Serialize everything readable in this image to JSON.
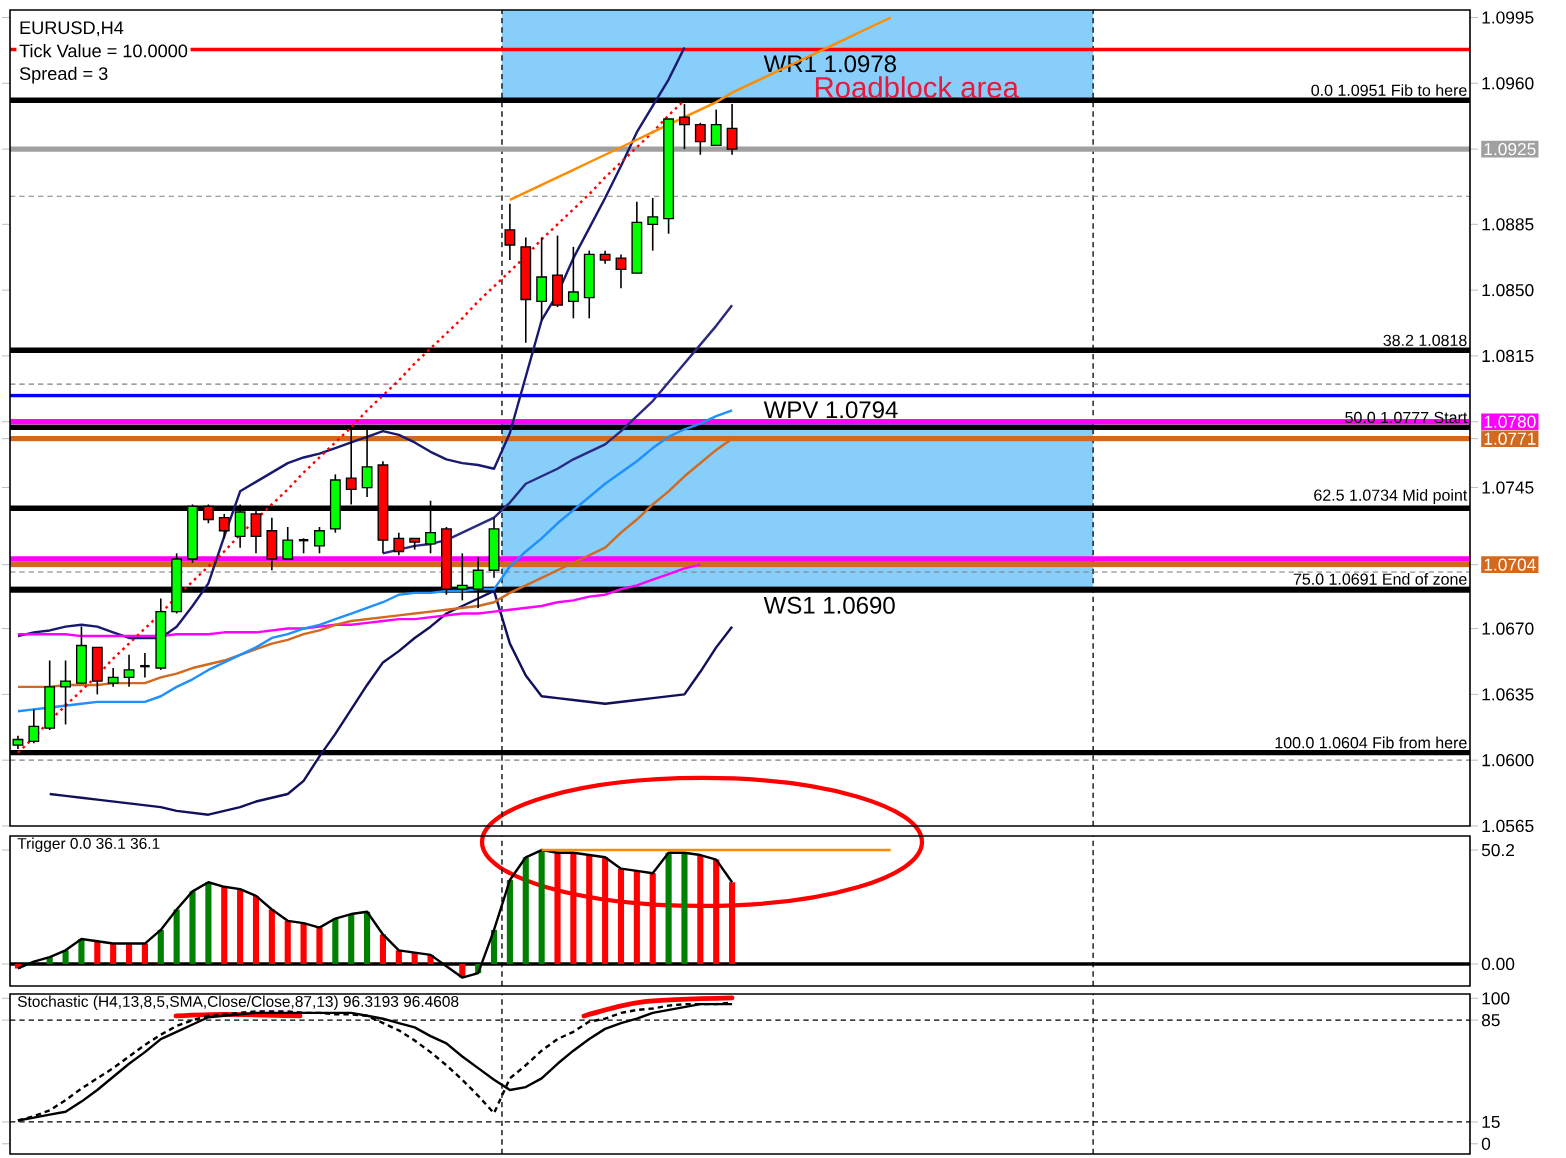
{
  "chart_data": [
    {
      "type": "candlestick",
      "title": "EURUSD,H4",
      "tick_labels": "y",
      "annotations": [
        "Tick Value = 10.0000",
        "Spread = 3",
        {
          "text": "Roadblock area",
          "y": 1.0952
        }
      ],
      "categories": [
        null,
        null,
        null,
        null,
        null,
        null,
        null,
        null,
        null,
        null,
        null,
        null,
        null,
        null,
        null,
        null,
        null,
        null,
        null,
        null,
        null,
        null,
        null,
        null,
        null,
        null,
        null,
        null,
        null,
        null,
        null,
        null,
        null,
        null,
        null,
        null,
        null,
        null,
        null,
        null,
        null,
        null,
        null,
        null,
        null,
        null,
        null,
        null,
        null,
        null,
        null,
        null,
        null,
        null,
        null,
        null,
        null,
        null,
        null,
        null,
        null,
        null,
        null,
        null,
        null,
        null,
        null,
        null,
        null,
        null,
        null,
        null,
        null,
        null,
        null,
        null,
        null,
        null,
        null,
        null,
        null,
        null,
        null,
        null,
        null,
        null,
        null,
        null,
        null,
        null,
        null,
        null
      ],
      "ohlc": [
        [
          1.0608,
          1.0613,
          1.0606,
          1.0611
        ],
        [
          1.061,
          1.0627,
          1.0609,
          1.0618
        ],
        [
          1.0617,
          1.0653,
          1.0616,
          1.0639
        ],
        [
          1.0639,
          1.0653,
          1.0619,
          1.0642
        ],
        [
          1.0641,
          1.0671,
          1.0641,
          1.0661
        ],
        [
          1.066,
          1.066,
          1.0635,
          1.0642
        ],
        [
          1.0641,
          1.0649,
          1.0639,
          1.0644
        ],
        [
          1.0644,
          1.0656,
          1.0639,
          1.0648
        ],
        [
          1.065,
          1.0657,
          1.0644,
          1.065
        ],
        [
          1.0649,
          1.0686,
          1.0648,
          1.0679
        ],
        [
          1.0679,
          1.071,
          1.0678,
          1.0707
        ],
        [
          1.0707,
          1.0736,
          1.0705,
          1.0735
        ],
        [
          1.0735,
          1.0736,
          1.0726,
          1.0728
        ],
        [
          1.0729,
          1.0731,
          1.0718,
          1.0722
        ],
        [
          1.0719,
          1.0736,
          1.0713,
          1.0732
        ],
        [
          1.0731,
          1.0733,
          1.071,
          1.0719
        ],
        [
          1.0722,
          1.0729,
          1.0701,
          1.0707
        ],
        [
          1.0707,
          1.0724,
          1.0707,
          1.0717
        ],
        [
          1.0717,
          1.0718,
          1.071,
          1.0717
        ],
        [
          1.0714,
          1.0724,
          1.071,
          1.0722
        ],
        [
          1.0723,
          1.0752,
          1.0721,
          1.0749
        ],
        [
          1.075,
          1.0776,
          1.0736,
          1.0744
        ],
        [
          1.0745,
          1.0776,
          1.074,
          1.0756
        ],
        [
          1.0757,
          1.0759,
          1.071,
          1.0717
        ],
        [
          1.0718,
          1.0721,
          1.0709,
          1.0711
        ],
        [
          1.0718,
          1.0718,
          1.0712,
          1.0716
        ],
        [
          1.0715,
          1.0738,
          1.071,
          1.0721
        ],
        [
          1.0723,
          1.0724,
          1.0688,
          1.0691
        ],
        [
          1.0691,
          1.071,
          1.0685,
          1.0693
        ],
        [
          1.0691,
          1.0708,
          1.0681,
          1.0701
        ],
        [
          1.0701,
          1.0729,
          1.0697,
          1.0723
        ],
        [
          1.0882,
          1.0896,
          1.0866,
          1.0874
        ],
        [
          1.0873,
          1.0878,
          1.0822,
          1.0845
        ],
        [
          1.0844,
          1.0878,
          1.0834,
          1.0857
        ],
        [
          1.0858,
          1.0879,
          1.0841,
          1.0842
        ],
        [
          1.0844,
          1.0873,
          1.0835,
          1.0849
        ],
        [
          1.0846,
          1.0871,
          1.0835,
          1.0869
        ],
        [
          1.0869,
          1.0871,
          1.0864,
          1.0866
        ],
        [
          1.0867,
          1.0869,
          1.0851,
          1.0861
        ],
        [
          1.0859,
          1.0897,
          1.0859,
          1.0886
        ],
        [
          1.0885,
          1.0899,
          1.0871,
          1.0889
        ],
        [
          1.0888,
          1.0941,
          1.088,
          1.0941
        ],
        [
          1.0942,
          1.0949,
          1.0925,
          1.0938
        ],
        [
          1.0938,
          1.0939,
          1.0922,
          1.0929
        ],
        [
          1.0927,
          1.0946,
          1.0927,
          1.0938
        ],
        [
          1.0936,
          1.0949,
          1.0922,
          1.0925
        ],
        null,
        null,
        null,
        null,
        null,
        null,
        null,
        null,
        null,
        null,
        null,
        null,
        null,
        null,
        null,
        null,
        null,
        null,
        null,
        null,
        null,
        null,
        null,
        null,
        null,
        null,
        null,
        null,
        null,
        null,
        null,
        null,
        null,
        null,
        null,
        null,
        null,
        null,
        null,
        null,
        null,
        null,
        null,
        null,
        null,
        null
      ],
      "series": [
        {
          "type": "line",
          "color": "#191970",
          "values": [
            1.0666,
            1.0668,
            1.0669,
            1.0671,
            1.0672,
            1.0671,
            1.0668,
            1.0665,
            1.0665,
            1.0665,
            1.0671,
            1.0682,
            1.0694,
            1.0719,
            1.0743,
            1.0748,
            1.0753,
            1.0758,
            1.0761,
            1.0763,
            1.0766,
            1.0769,
            1.0772,
            1.0775,
            1.0773,
            1.0769,
            1.0764,
            1.076,
            1.0758,
            1.0757,
            1.0755,
            1.0774,
            1.0804,
            1.0834,
            1.0848,
            1.0867,
            1.0883,
            1.0899,
            1.0916,
            1.0934,
            1.0948,
            1.0962,
            1.0979,
            null,
            null,
            null,
            null,
            null,
            null,
            null,
            null,
            null,
            null,
            null,
            null,
            null,
            null,
            null,
            null,
            null,
            null,
            null,
            null,
            null,
            null,
            null,
            null,
            null,
            null,
            null,
            null,
            null,
            null,
            null,
            null,
            null,
            null,
            null,
            null,
            null,
            null,
            null,
            null,
            null,
            null,
            null,
            null,
            null,
            null,
            null,
            null,
            null
          ]
        },
        {
          "type": "line",
          "color": "#2a2a80",
          "values": [
            null,
            null,
            null,
            null,
            null,
            null,
            null,
            null,
            null,
            null,
            null,
            null,
            null,
            null,
            null,
            null,
            null,
            null,
            null,
            null,
            null,
            null,
            null,
            1.071,
            1.0712,
            1.0714,
            1.0715,
            1.0717,
            1.0721,
            1.0725,
            1.0729,
            1.0737,
            1.0747,
            1.0751,
            1.0755,
            1.076,
            1.0764,
            1.0768,
            1.0775,
            1.0783,
            1.0791,
            1.0801,
            1.0811,
            1.0821,
            1.0831,
            1.0842,
            null,
            null,
            null,
            null,
            null,
            null,
            null,
            null,
            null,
            null,
            null,
            null,
            null,
            null,
            null,
            null,
            null,
            null,
            null,
            null,
            null,
            null,
            null,
            null,
            null,
            null,
            null,
            null,
            null,
            null,
            null,
            null,
            null,
            null,
            null,
            null,
            null,
            null,
            null,
            null,
            null,
            null,
            null,
            null,
            null,
            null
          ]
        },
        {
          "type": "line",
          "color": "#10105c",
          "values": [
            null,
            null,
            1.0582,
            1.0581,
            1.058,
            1.0579,
            1.0578,
            1.0577,
            1.0576,
            1.0575,
            1.0573,
            1.0572,
            1.0571,
            1.0573,
            1.0575,
            1.0578,
            1.058,
            1.0582,
            1.0589,
            1.0602,
            1.0614,
            1.0627,
            1.064,
            1.0652,
            1.0658,
            1.0665,
            1.0671,
            1.0678,
            1.0682,
            1.0686,
            1.069,
            1.0662,
            1.0645,
            1.0634,
            1.0633,
            1.0632,
            1.0631,
            1.063,
            1.0631,
            1.0632,
            1.0633,
            1.0634,
            1.0635,
            1.0647,
            1.066,
            1.0671,
            null,
            null,
            null,
            null,
            null,
            null,
            null,
            null,
            null,
            null,
            null,
            null,
            null,
            null,
            null,
            null,
            null,
            null,
            null,
            null,
            null,
            null,
            null,
            null,
            null,
            null,
            null,
            null,
            null,
            null,
            null,
            null,
            null,
            null,
            null,
            null,
            null,
            null,
            null,
            null,
            null,
            null,
            null,
            null,
            null,
            null
          ]
        },
        {
          "type": "line",
          "color": "#ff00ff",
          "values": [
            1.0667,
            1.0667,
            1.0667,
            1.0667,
            1.0666,
            1.0666,
            1.0666,
            1.0666,
            1.0666,
            1.0666,
            1.0667,
            1.0667,
            1.0667,
            1.0668,
            1.0668,
            1.0668,
            1.0669,
            1.067,
            1.067,
            1.0671,
            1.0672,
            1.0672,
            1.0673,
            1.0674,
            1.0675,
            1.0675,
            1.0676,
            1.0677,
            1.0678,
            1.0678,
            1.0679,
            1.068,
            1.0681,
            1.0682,
            1.0684,
            1.0685,
            1.0687,
            1.0688,
            1.0691,
            1.0693,
            1.0696,
            1.0699,
            1.0702,
            1.0704,
            null,
            null,
            null,
            null,
            null,
            null,
            null,
            null,
            null,
            null,
            null,
            null,
            null,
            null,
            null,
            null,
            null,
            null,
            null,
            null,
            null,
            null,
            null,
            null,
            null,
            null,
            null,
            null,
            null,
            null,
            null,
            null,
            null,
            null,
            null,
            null,
            null,
            null,
            null,
            null,
            null,
            null,
            null,
            null,
            null,
            null,
            null,
            null
          ]
        },
        {
          "type": "line",
          "color": "#d2691e",
          "values": [
            1.0639,
            1.0639,
            1.0639,
            1.064,
            1.064,
            1.064,
            1.0641,
            1.0641,
            1.0641,
            1.0644,
            1.0646,
            1.0649,
            1.0651,
            1.0653,
            1.0656,
            1.0659,
            1.0662,
            1.0664,
            1.0667,
            1.0669,
            1.0672,
            1.0674,
            1.0675,
            1.0676,
            1.0677,
            1.0678,
            1.0679,
            1.068,
            1.0681,
            1.0682,
            1.0684,
            1.0689,
            1.0693,
            1.0697,
            1.0701,
            1.0705,
            1.0709,
            1.0713,
            1.0721,
            1.0728,
            1.0736,
            1.0743,
            1.0751,
            1.0758,
            1.0765,
            1.0771,
            null,
            null,
            null,
            null,
            null,
            null,
            null,
            null,
            null,
            null,
            null,
            null,
            null,
            null,
            null,
            null,
            null,
            null,
            null,
            null,
            null,
            null,
            null,
            null,
            null,
            null,
            null,
            null,
            null,
            null,
            null,
            null,
            null,
            null,
            null,
            null,
            null,
            null,
            null,
            null,
            null,
            null,
            null,
            null,
            null,
            null
          ]
        },
        {
          "type": "line",
          "color": "#1e90ff",
          "values": [
            1.0626,
            1.0627,
            1.0628,
            1.0629,
            1.063,
            1.0631,
            1.0631,
            1.0631,
            1.0631,
            1.0634,
            1.0639,
            1.0643,
            1.0648,
            1.0652,
            1.0656,
            1.066,
            1.0665,
            1.0667,
            1.067,
            1.0672,
            1.0675,
            1.0678,
            1.0681,
            1.0684,
            1.0688,
            1.0689,
            1.0689,
            1.069,
            1.069,
            1.0691,
            1.0691,
            1.0703,
            1.0711,
            1.0718,
            1.0726,
            1.0733,
            1.074,
            1.0747,
            1.0753,
            1.0759,
            1.0766,
            1.0772,
            1.0776,
            1.0779,
            1.0783,
            1.0786,
            null,
            null,
            null,
            null,
            null,
            null,
            null,
            null,
            null,
            null,
            null,
            null,
            null,
            null,
            null,
            null,
            null,
            null,
            null,
            null,
            null,
            null,
            null,
            null,
            null,
            null,
            null,
            null,
            null,
            null,
            null,
            null,
            null,
            null,
            null,
            null,
            null,
            null,
            null,
            null,
            null,
            null,
            null,
            null,
            null,
            null
          ]
        },
        {
          "type": "line",
          "color": "#ff0000",
          "line_style": "dotted",
          "values": [
            1.0604,
            1.0612,
            1.0621,
            1.0629,
            1.0637,
            1.0645,
            1.0654,
            1.0662,
            1.067,
            1.0678,
            1.0687,
            1.0695,
            1.0703,
            1.0711,
            1.072,
            1.0728,
            1.0736,
            1.0744,
            1.0753,
            1.0761,
            1.0769,
            1.0777,
            1.0786,
            1.0794,
            1.0802,
            1.0811,
            1.0819,
            1.0827,
            1.0835,
            1.0844,
            1.0852,
            1.086,
            1.0868,
            1.0877,
            1.0885,
            1.0893,
            1.0901,
            1.091,
            1.0918,
            1.0926,
            1.0934,
            1.0943,
            1.0951,
            null,
            null,
            null,
            null,
            null,
            null,
            null,
            null,
            null,
            null,
            null,
            null,
            null,
            null,
            null,
            null,
            null,
            null,
            null,
            null,
            null,
            null,
            null,
            null,
            null,
            null,
            null,
            null,
            null,
            null,
            null,
            null,
            null,
            null,
            null,
            null,
            null,
            null,
            null,
            null,
            null,
            null,
            null,
            null,
            null,
            null,
            null,
            null,
            null
          ]
        },
        {
          "type": "line",
          "color": "#ff8c00",
          "values": [
            null,
            null,
            null,
            null,
            null,
            null,
            null,
            null,
            null,
            null,
            null,
            null,
            null,
            null,
            null,
            null,
            null,
            null,
            null,
            null,
            null,
            null,
            null,
            null,
            null,
            null,
            null,
            null,
            null,
            null,
            null,
            1.0898,
            1.0902,
            1.0906,
            1.091,
            1.0914,
            1.0918,
            1.0922,
            1.0926,
            1.093,
            1.0934,
            1.0938,
            1.0942,
            1.0946,
            1.095,
            1.0955,
            1.0959,
            1.0963,
            1.0967,
            1.0971,
            1.0975,
            1.0979,
            1.0983,
            1.0987,
            1.0991,
            1.0995,
            null,
            null,
            null,
            null,
            null,
            null,
            null,
            null,
            null,
            null,
            null,
            null,
            null,
            null,
            null,
            null,
            null,
            null,
            null,
            null,
            null,
            null,
            null,
            null,
            null,
            null,
            null,
            null,
            null,
            null,
            null,
            null,
            null,
            null,
            null,
            null
          ]
        }
      ],
      "ylim": [
        1.0565,
        1.0999
      ],
      "yticks": [
        1.0565,
        {
          "value": 1.06,
          "label": "1.0600"
        },
        1.0635,
        {
          "value": 1.067,
          "label": "1.0670"
        },
        1.0704,
        1.0745,
        1.0771,
        {
          "value": 1.078,
          "label": "1.0780"
        },
        1.0815,
        {
          "value": 1.085,
          "label": "1.0850"
        },
        1.0885,
        1.0925,
        {
          "value": 1.096,
          "label": "1.0960"
        },
        1.0995
      ],
      "bands": [
        {
          "axis": "y",
          "from": 1.0951,
          "to": 1.0999,
          "color": "#87cefa"
        },
        {
          "axis": "y",
          "from": 1.0691,
          "to": 1.078,
          "color": "#87cefa"
        }
      ],
      "ref_lines": [
        {
          "axis": "y",
          "value": 1.09,
          "color": "#808080",
          "line_style": "dashed"
        },
        {
          "axis": "y",
          "value": 1.08,
          "color": "#808080",
          "line_style": "dashed"
        },
        {
          "axis": "y",
          "value": 1.07,
          "color": "#808080",
          "line_style": "dashed"
        },
        {
          "axis": "y",
          "value": 1.06,
          "color": "#808080",
          "line_style": "dashed"
        },
        {
          "axis": "y",
          "value": 1.0925,
          "color": "#a0a0a0"
        },
        {
          "axis": "y",
          "value": 1.078,
          "color": "#ff00ff"
        },
        {
          "axis": "y",
          "value": 1.0771,
          "color": "#d2691e"
        },
        {
          "axis": "y",
          "value": 1.0707,
          "color": "#ff00ff"
        },
        {
          "axis": "y",
          "value": 1.0704,
          "color": "#d2691e"
        },
        {
          "axis": "y",
          "value": 1.0978,
          "color": "#ff0000",
          "line_style": "solid",
          "label": "WR1 1.0978"
        },
        {
          "axis": "y",
          "value": 1.0794,
          "color": "#0000ff",
          "line_style": "solid",
          "label": "WPV 1.0794"
        },
        {
          "axis": "y",
          "value": 1.069,
          "color": "#000000",
          "line_style": "solid",
          "label": "WS1 1.0690"
        },
        {
          "axis": "y",
          "value": 1.0951,
          "color": "#000000",
          "label": "0.0 1.0951 Fib to here"
        },
        {
          "axis": "y",
          "value": 1.0818,
          "color": "#000000",
          "label": "38.2 1.0818"
        },
        {
          "axis": "y",
          "value": 1.0777,
          "color": "#000000",
          "label": "50.0 1.0777 Start"
        },
        {
          "axis": "y",
          "value": 1.0734,
          "color": "#000000",
          "label": "62.5 1.0734 Mid point"
        },
        {
          "axis": "y",
          "value": 1.0691,
          "color": "#000000",
          "label": "75.0 1.0691 End of zone"
        },
        {
          "axis": "y",
          "value": 1.0604,
          "color": "#000000",
          "label": "100.0 1.0604 Fib from here"
        }
      ]
    },
    {
      "type": "bar",
      "title": "Trigger 0.0 36.1 36.1",
      "tick_labels": "y",
      "categories": [
        null,
        null,
        null,
        null,
        null,
        null,
        null,
        null,
        null,
        null,
        null,
        null,
        null,
        null,
        null,
        null,
        null,
        null,
        null,
        null,
        null,
        null,
        null,
        null,
        null,
        null,
        null,
        null,
        null,
        null,
        null,
        null,
        null,
        null,
        null,
        null,
        null,
        null,
        null,
        null,
        null,
        null,
        null,
        null,
        null,
        null,
        null,
        null,
        null,
        null,
        null,
        null,
        null,
        null,
        null,
        null,
        null,
        null,
        null,
        null,
        null,
        null,
        null,
        null,
        null,
        null,
        null,
        null,
        null,
        null,
        null,
        null,
        null,
        null,
        null,
        null,
        null,
        null,
        null,
        null,
        null,
        null,
        null,
        null,
        null,
        null,
        null,
        null,
        null,
        null,
        null,
        null
      ],
      "series": [
        {
          "type": "bar",
          "values": [
            -2,
            null,
            3,
            6,
            11,
            10,
            9,
            9,
            9,
            15,
            24,
            32,
            36,
            34,
            33,
            30,
            24,
            19,
            18,
            16,
            20,
            22,
            23,
            13,
            6,
            5,
            4,
            null,
            -6,
            -4,
            15,
            37,
            47,
            50.2,
            49,
            49,
            48,
            47,
            42,
            41,
            40,
            49,
            49,
            48,
            46,
            36,
            null,
            null,
            null,
            null,
            null,
            null,
            null,
            null,
            null,
            null,
            null,
            null,
            null,
            null,
            null,
            null,
            null,
            null,
            null,
            null,
            null,
            null,
            null,
            null,
            null,
            null,
            null,
            null,
            null,
            null,
            null,
            null,
            null,
            null,
            null,
            null,
            null,
            null,
            null,
            null,
            null,
            null,
            null,
            null,
            null,
            null
          ],
          "colors": [
            "#ff0000",
            null,
            "#008000",
            "#008000",
            "#008000",
            "#ff0000",
            "#ff0000",
            "#ff0000",
            "#ff0000",
            "#008000",
            "#008000",
            "#008000",
            "#008000",
            "#ff0000",
            "#ff0000",
            "#ff0000",
            "#ff0000",
            "#ff0000",
            "#ff0000",
            "#ff0000",
            "#008000",
            "#008000",
            "#008000",
            "#ff0000",
            "#ff0000",
            "#ff0000",
            "#ff0000",
            null,
            "#ff0000",
            "#008000",
            "#008000",
            "#008000",
            "#008000",
            "#008000",
            "#ff0000",
            "#ff0000",
            "#ff0000",
            "#ff0000",
            "#ff0000",
            "#ff0000",
            "#ff0000",
            "#008000",
            "#008000",
            "#ff0000",
            "#ff0000",
            "#ff0000",
            null,
            null,
            null,
            null,
            null,
            null,
            null,
            null,
            null,
            null,
            null,
            null,
            null,
            null,
            null,
            null,
            null,
            null,
            null,
            null,
            null,
            null,
            null,
            null,
            null,
            null,
            null,
            null,
            null,
            null,
            null,
            null,
            null,
            null,
            null,
            null,
            null,
            null,
            null,
            null,
            null,
            null,
            null,
            null,
            null,
            null
          ]
        },
        {
          "type": "line",
          "color": "#000000",
          "values": [
            -2,
            1,
            3,
            6,
            11,
            10,
            9,
            9,
            9,
            15,
            24,
            32,
            36,
            34,
            33,
            30,
            24,
            19,
            18,
            16,
            20,
            22,
            23,
            13,
            6,
            5,
            4,
            -1,
            -6,
            -4,
            15,
            37,
            47,
            50.2,
            49,
            49,
            48,
            47,
            42,
            41,
            40,
            49,
            49,
            48,
            46,
            36,
            null,
            null,
            null,
            null,
            null,
            null,
            null,
            null,
            null,
            null,
            null,
            null,
            null,
            null,
            null,
            null,
            null,
            null,
            null,
            null,
            null,
            null,
            null,
            null,
            null,
            null,
            null,
            null,
            null,
            null,
            null,
            null,
            null,
            null,
            null,
            null,
            null,
            null,
            null,
            null,
            null,
            null,
            null,
            null,
            null,
            null
          ]
        },
        {
          "type": "line",
          "color": "#ff8c00",
          "values": [
            null,
            null,
            null,
            null,
            null,
            null,
            null,
            null,
            null,
            null,
            null,
            null,
            null,
            null,
            null,
            null,
            null,
            null,
            null,
            null,
            null,
            null,
            null,
            null,
            null,
            null,
            null,
            null,
            null,
            null,
            null,
            null,
            null,
            50.2,
            50.2,
            50.2,
            50.2,
            50.2,
            50.2,
            50.2,
            50.2,
            50.2,
            50.2,
            50.2,
            50.2,
            50.2,
            50.2,
            50.2,
            50.2,
            50.2,
            50.2,
            50.2,
            50.2,
            50.2,
            50.2,
            50.2,
            null,
            null,
            null,
            null,
            null,
            null,
            null,
            null,
            null,
            null,
            null,
            null,
            null,
            null,
            null,
            null,
            null,
            null,
            null,
            null,
            null,
            null,
            null,
            null,
            null,
            null,
            null,
            null,
            null,
            null,
            null,
            null,
            null,
            null,
            null,
            null
          ]
        }
      ],
      "ylim": [
        -9.7,
        56.4
      ],
      "yticks": [
        {
          "value": 0,
          "label": "0.00"
        },
        50.2
      ],
      "ref_lines": [
        {
          "axis": "y",
          "value": 0,
          "color": "#000000",
          "line_style": "solid"
        }
      ]
    },
    {
      "type": "line",
      "title": "Stochastic (H4,13,8,5,SMA,Close/Close,87,13) 96.3193 96.4608",
      "tick_labels": "y",
      "categories": [
        null,
        null,
        null,
        null,
        null,
        null,
        null,
        null,
        null,
        null,
        null,
        null,
        null,
        null,
        null,
        null,
        null,
        null,
        null,
        null,
        null,
        null,
        null,
        null,
        null,
        null,
        null,
        null,
        null,
        null,
        null,
        null,
        null,
        null,
        null,
        null,
        null,
        null,
        null,
        null,
        null,
        null,
        null,
        null,
        null,
        null,
        null,
        null,
        null,
        null,
        null,
        null,
        null,
        null,
        null,
        null,
        null,
        null,
        null,
        null,
        null,
        null,
        null,
        null,
        null,
        null,
        null,
        null,
        null,
        null,
        null,
        null,
        null,
        null,
        null,
        null,
        null,
        null,
        null,
        null,
        null,
        null,
        null,
        null,
        null,
        null,
        null,
        null,
        null,
        null,
        null,
        null
      ],
      "series": [
        {
          "color": "#000000",
          "values": [
            16,
            18,
            20,
            22,
            29,
            37,
            46,
            55,
            63,
            72,
            77,
            82,
            87,
            88,
            89,
            90,
            90,
            90,
            90,
            90,
            90,
            90,
            88,
            86,
            83,
            80,
            74,
            69,
            60,
            52,
            44,
            37,
            39,
            45,
            55,
            64,
            72,
            79,
            83,
            86,
            90,
            92,
            94,
            96,
            96,
            96,
            null,
            null,
            null,
            null,
            null,
            null,
            null,
            null,
            null,
            null,
            null,
            null,
            null,
            null,
            null,
            null,
            null,
            null,
            null,
            null,
            null,
            null,
            null,
            null,
            null,
            null,
            null,
            null,
            null,
            null,
            null,
            null,
            null,
            null,
            null,
            null,
            null,
            null,
            null,
            null,
            null,
            null,
            null,
            null,
            null,
            null
          ]
        },
        {
          "color": "#000000",
          "line_style": "dashed",
          "values": [
            16,
            19,
            23,
            30,
            38,
            45,
            52,
            60,
            68,
            75,
            81,
            85,
            88,
            89,
            90,
            91,
            91,
            91,
            90,
            90,
            89,
            89,
            88,
            83,
            78,
            71,
            63,
            54,
            44,
            33,
            21,
            45,
            54,
            64,
            72,
            77,
            84,
            86,
            90,
            92,
            93,
            95,
            96,
            96,
            96,
            97,
            null,
            null,
            null,
            null,
            null,
            null,
            null,
            null,
            null,
            null,
            null,
            null,
            null,
            null,
            null,
            null,
            null,
            null,
            null,
            null,
            null,
            null,
            null,
            null,
            null,
            null,
            null,
            null,
            null,
            null,
            null,
            null,
            null,
            null,
            null,
            null,
            null,
            null,
            null,
            null,
            null,
            null,
            null,
            null,
            null,
            null
          ]
        }
      ],
      "ylim": [
        -7,
        103
      ],
      "yticks": [
        0,
        15,
        85,
        100
      ],
      "ref_lines": [
        {
          "axis": "y",
          "value": 85,
          "color": "#000000",
          "line_style": "dashed"
        },
        {
          "axis": "y",
          "value": 15,
          "color": "#000000",
          "line_style": "dashed"
        }
      ]
    }
  ]
}
